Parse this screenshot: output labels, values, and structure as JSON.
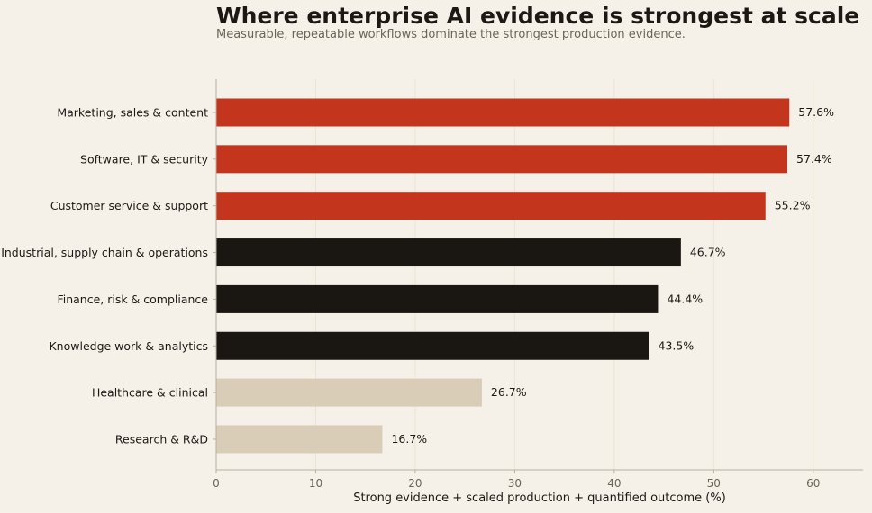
{
  "chart_data": {
    "type": "bar",
    "orientation": "horizontal",
    "title": "Where enterprise AI evidence is strongest at scale",
    "subtitle": "Measurable, repeatable workflows dominate the strongest production evidence.",
    "xlabel": "Strong evidence + scaled production + quantified outcome (%)",
    "ylabel": "",
    "xlim": [
      0,
      65
    ],
    "xticks": [
      0,
      10,
      20,
      30,
      40,
      50,
      60
    ],
    "grid": "vertical",
    "categories": [
      "Marketing, sales & content",
      "Software, IT & security",
      "Customer service & support",
      "Industrial, supply chain & operations",
      "Finance, risk & compliance",
      "Knowledge work & analytics",
      "Healthcare & clinical",
      "Research & R&D"
    ],
    "values": [
      57.6,
      57.4,
      55.2,
      46.7,
      44.4,
      43.5,
      26.7,
      16.7
    ],
    "value_labels": [
      "57.6%",
      "57.4%",
      "55.2%",
      "46.7%",
      "44.4%",
      "43.5%",
      "26.7%",
      "16.7%"
    ],
    "bar_colors": [
      "#c3351c",
      "#c3351c",
      "#c3351c",
      "#1a1612",
      "#1a1612",
      "#1a1612",
      "#d9cdb8",
      "#d9cdb8"
    ]
  },
  "colors": {
    "background": "#f6f1e8",
    "grid": "#ebe4d3",
    "axis": "#b8b0a0"
  }
}
